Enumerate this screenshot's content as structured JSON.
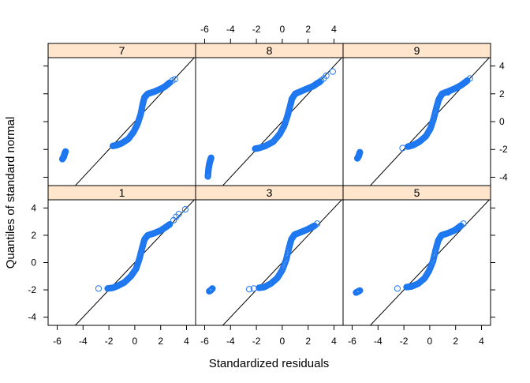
{
  "chart_data": {
    "type": "scatter",
    "title": "",
    "xlabel": "Standardized residuals",
    "ylabel": "Quantiles of standard normal",
    "xlim": [
      -6.7,
      4.7
    ],
    "ylim": [
      -4.6,
      4.6
    ],
    "x_ticks": [
      -6,
      -4,
      -2,
      0,
      2,
      4
    ],
    "y_ticks": [
      -4,
      -2,
      0,
      2,
      4
    ],
    "x_tick_labels": [
      "-6",
      "-4",
      "-2",
      "0",
      "2",
      "4"
    ],
    "y_tick_labels": [
      "-4",
      "-2",
      "0",
      "2",
      "4"
    ],
    "reference_line": {
      "slope": 1,
      "intercept": 0
    },
    "point_color": "#1f78f0",
    "strip_color": "#ffe5cc",
    "panels": [
      {
        "label": "7",
        "outliers": [
          [
            -5.6,
            -2.7
          ],
          [
            -5.5,
            -2.55
          ],
          [
            -5.45,
            -2.4
          ],
          [
            -5.4,
            -2.25
          ],
          [
            -5.35,
            -2.15
          ]
        ],
        "curve": [
          [
            -1.7,
            -1.75
          ],
          [
            -1.4,
            -1.7
          ],
          [
            -1.0,
            -1.55
          ],
          [
            -0.5,
            -1.25
          ],
          [
            -0.1,
            -0.75
          ],
          [
            0.2,
            -0.2
          ],
          [
            0.45,
            0.5
          ],
          [
            0.6,
            1.2
          ],
          [
            0.75,
            1.75
          ],
          [
            1.0,
            2.0
          ],
          [
            1.5,
            2.15
          ],
          [
            2.0,
            2.35
          ],
          [
            2.3,
            2.5
          ],
          [
            2.5,
            2.65
          ],
          [
            2.7,
            2.8
          ]
        ],
        "tail": [
          [
            2.9,
            2.95
          ],
          [
            3.1,
            3.05
          ]
        ]
      },
      {
        "label": "8",
        "outliers": [
          [
            -5.75,
            -3.95
          ],
          [
            -5.7,
            -3.4
          ],
          [
            -5.65,
            -3.1
          ],
          [
            -5.6,
            -2.9
          ],
          [
            -5.55,
            -2.75
          ],
          [
            -5.5,
            -2.6
          ]
        ],
        "curve": [
          [
            -2.1,
            -1.95
          ],
          [
            -1.8,
            -1.9
          ],
          [
            -1.3,
            -1.75
          ],
          [
            -0.7,
            -1.45
          ],
          [
            -0.2,
            -0.9
          ],
          [
            0.15,
            -0.3
          ],
          [
            0.4,
            0.4
          ],
          [
            0.6,
            1.1
          ],
          [
            0.75,
            1.65
          ],
          [
            1.0,
            2.0
          ],
          [
            1.5,
            2.2
          ],
          [
            2.0,
            2.4
          ],
          [
            2.4,
            2.55
          ],
          [
            2.7,
            2.75
          ],
          [
            2.9,
            2.85
          ]
        ],
        "tail": [
          [
            3.0,
            2.95
          ],
          [
            3.2,
            3.1
          ],
          [
            3.4,
            3.3
          ],
          [
            3.9,
            3.6
          ]
        ]
      },
      {
        "label": "9",
        "outliers": [
          [
            -5.6,
            -2.65
          ],
          [
            -5.5,
            -2.5
          ],
          [
            -5.45,
            -2.35
          ],
          [
            -5.4,
            -2.2
          ]
        ],
        "curve": [
          [
            -1.7,
            -1.8
          ],
          [
            -1.3,
            -1.7
          ],
          [
            -0.8,
            -1.45
          ],
          [
            -0.3,
            -1.05
          ],
          [
            0.05,
            -0.5
          ],
          [
            0.3,
            0.2
          ],
          [
            0.5,
            0.95
          ],
          [
            0.7,
            1.6
          ],
          [
            0.95,
            2.0
          ],
          [
            1.5,
            2.2
          ],
          [
            2.0,
            2.4
          ],
          [
            2.4,
            2.6
          ],
          [
            2.7,
            2.8
          ],
          [
            2.9,
            2.95
          ]
        ],
        "tail": [
          [
            -2.1,
            -1.9
          ],
          [
            1.4,
            2.1
          ],
          [
            3.1,
            3.1
          ]
        ]
      },
      {
        "label": "1",
        "outliers": [],
        "curve": [
          [
            -2.1,
            -1.9
          ],
          [
            -1.7,
            -1.85
          ],
          [
            -1.3,
            -1.7
          ],
          [
            -0.8,
            -1.45
          ],
          [
            -0.3,
            -1.0
          ],
          [
            0.1,
            -0.45
          ],
          [
            0.35,
            0.25
          ],
          [
            0.55,
            1.0
          ],
          [
            0.75,
            1.7
          ],
          [
            1.0,
            2.0
          ],
          [
            1.5,
            2.15
          ],
          [
            2.0,
            2.35
          ],
          [
            2.4,
            2.6
          ],
          [
            2.7,
            2.8
          ]
        ],
        "tail": [
          [
            -2.8,
            -1.9
          ],
          [
            3.0,
            3.1
          ],
          [
            3.2,
            3.35
          ],
          [
            3.4,
            3.55
          ],
          [
            3.9,
            3.9
          ]
        ]
      },
      {
        "label": "3",
        "outliers": [
          [
            -5.65,
            -2.1
          ],
          [
            -5.55,
            -2.05
          ],
          [
            -5.45,
            -1.95
          ],
          [
            -5.4,
            -1.9
          ]
        ],
        "curve": [
          [
            -1.8,
            -1.85
          ],
          [
            -1.4,
            -1.8
          ],
          [
            -0.9,
            -1.55
          ],
          [
            -0.4,
            -1.15
          ],
          [
            0.0,
            -0.55
          ],
          [
            0.3,
            0.2
          ],
          [
            0.5,
            1.0
          ],
          [
            0.7,
            1.7
          ],
          [
            0.95,
            2.05
          ],
          [
            1.5,
            2.25
          ],
          [
            2.0,
            2.45
          ],
          [
            2.3,
            2.6
          ],
          [
            2.5,
            2.7
          ]
        ],
        "tail": [
          [
            -2.2,
            -1.9
          ],
          [
            -2.55,
            -1.95
          ],
          [
            2.7,
            2.85
          ]
        ]
      },
      {
        "label": "5",
        "outliers": [
          [
            -5.7,
            -2.2
          ],
          [
            -5.6,
            -2.15
          ],
          [
            -5.5,
            -2.1
          ],
          [
            -5.4,
            -2.05
          ]
        ],
        "curve": [
          [
            -1.8,
            -1.8
          ],
          [
            -1.4,
            -1.75
          ],
          [
            -0.9,
            -1.55
          ],
          [
            -0.4,
            -1.15
          ],
          [
            -0.05,
            -0.6
          ],
          [
            0.25,
            0.1
          ],
          [
            0.45,
            0.9
          ],
          [
            0.65,
            1.6
          ],
          [
            0.9,
            2.0
          ],
          [
            1.4,
            2.15
          ],
          [
            1.9,
            2.35
          ],
          [
            2.2,
            2.55
          ],
          [
            2.4,
            2.7
          ]
        ],
        "tail": [
          [
            -2.5,
            -1.9
          ],
          [
            2.6,
            2.85
          ]
        ]
      }
    ]
  }
}
